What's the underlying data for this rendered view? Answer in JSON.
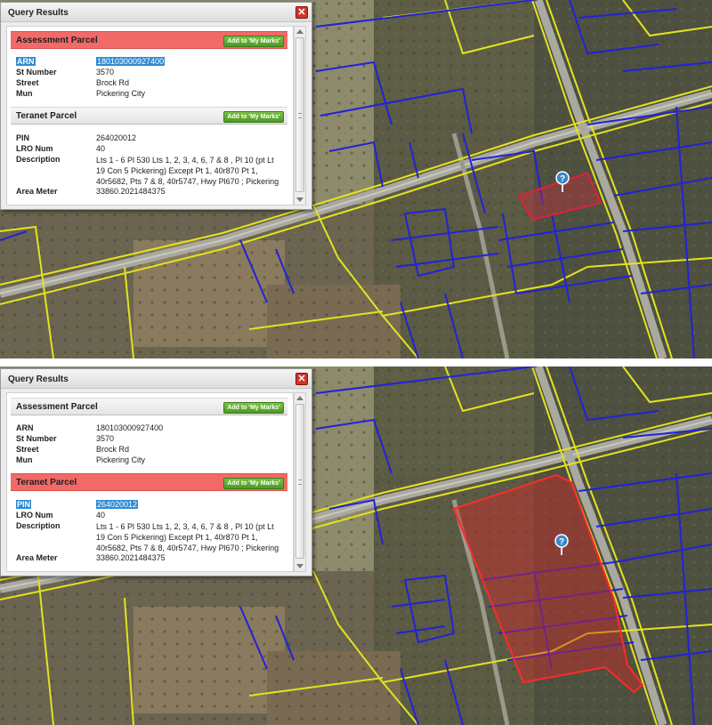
{
  "dialog": {
    "title": "Query Results",
    "close_label": "✕",
    "add_label": "Add to 'My Marks'",
    "assessment": {
      "title": "Assessment Parcel",
      "fields": [
        {
          "label": "ARN",
          "value": "180103000927400"
        },
        {
          "label": "St Number",
          "value": "3570"
        },
        {
          "label": "Street",
          "value": "Brock Rd"
        },
        {
          "label": "Mun",
          "value": "Pickering City"
        }
      ]
    },
    "teranet": {
      "title": "Teranet Parcel",
      "fields": [
        {
          "label": "PIN",
          "value": "264020012"
        },
        {
          "label": "LRO Num",
          "value": "40"
        },
        {
          "label": "Description",
          "value": "Lts 1 - 6 Pl 530 Lts 1, 2, 3, 4, 6, 7 & 8 , Pl 10 (pt Lt 19 Con 5 Pickering) Except Pt 1, 40r870 Pt 1, 40r5682, Pts 7 & 8, 40r5747, Hwy Pl670 ; Pickering"
        },
        {
          "label": "Area Meter",
          "value": "33860.2021484375"
        }
      ]
    }
  },
  "map": {
    "marker_symbol": "?",
    "colors": {
      "lot_lines": "#2222d8",
      "property_lines": "#e3e31f",
      "highlight": "#ff2a2a",
      "dialog_highlight_header": "#f26a67",
      "button_green": "#5aa82e",
      "selection": "#2f8ad3"
    },
    "panels": [
      {
        "selected_section": "assessment",
        "selected_field": "ARN"
      },
      {
        "selected_section": "teranet",
        "selected_field": "PIN"
      }
    ]
  }
}
